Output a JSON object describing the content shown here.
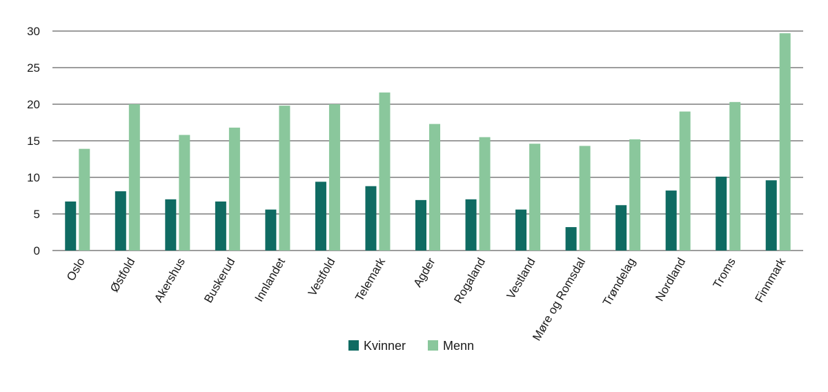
{
  "chart_data": {
    "type": "bar",
    "title": "",
    "xlabel": "",
    "ylabel": "",
    "ylim": [
      0,
      30
    ],
    "yticks": [
      0,
      5,
      10,
      15,
      20,
      25,
      30
    ],
    "grid": true,
    "legend_position": "bottom",
    "categories": [
      "Oslo",
      "Østfold",
      "Akershus",
      "Buskerud",
      "Innlandet",
      "Vestfold",
      "Telemark",
      "Agder",
      "Rogaland",
      "Vestland",
      "Møre og Romsdal",
      "Trøndelag",
      "Nordland",
      "Troms",
      "Finnmark"
    ],
    "series": [
      {
        "name": "Kvinner",
        "color": "#0f6b62",
        "values": [
          6.7,
          8.1,
          7.0,
          6.7,
          5.6,
          9.4,
          8.8,
          6.9,
          7.0,
          5.6,
          3.2,
          6.2,
          8.2,
          10.1,
          9.6
        ]
      },
      {
        "name": "Menn",
        "color": "#8ac79c",
        "values": [
          13.9,
          20.0,
          15.8,
          16.8,
          19.8,
          20.0,
          21.6,
          17.3,
          15.5,
          14.6,
          14.3,
          15.2,
          19.0,
          20.3,
          29.7
        ]
      }
    ]
  }
}
